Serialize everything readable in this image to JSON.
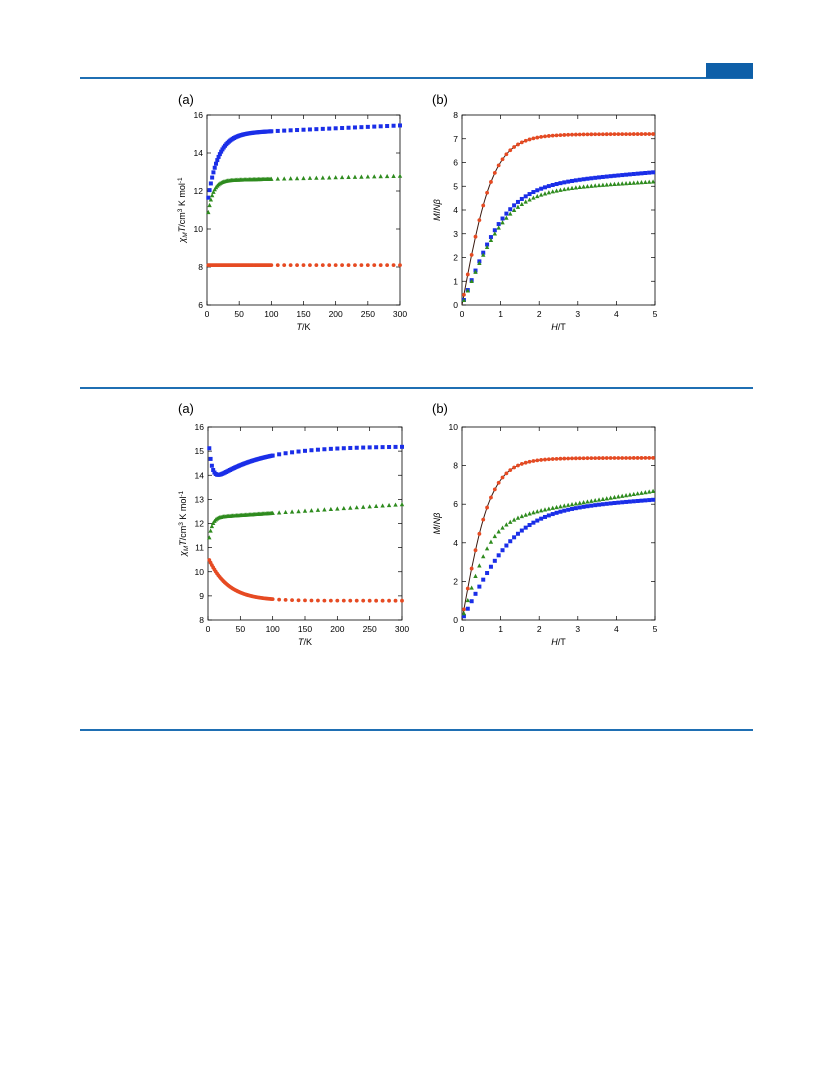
{
  "colors": {
    "rule": "#1f6fb3",
    "red": "#e64a22",
    "blue": "#1a2ee8",
    "green": "#2e8b1e",
    "fit": "#3a1a10"
  },
  "figures": [
    {
      "labels": {
        "a": "(a)",
        "b": "(b)"
      }
    },
    {
      "labels": {
        "a": "(a)",
        "b": "(b)"
      }
    }
  ],
  "chart_data": [
    {
      "type": "scatter",
      "figure": 1,
      "panel": "(a)",
      "xlabel": "T/K",
      "ylabel": "χMT/cm3 K mol-1",
      "xlim": [
        0,
        300
      ],
      "ylim": [
        6,
        16
      ],
      "xticks": [
        0,
        50,
        100,
        150,
        200,
        250,
        300
      ],
      "yticks": [
        6,
        8,
        10,
        12,
        14,
        16
      ],
      "series": [
        {
          "color": "#1a2ee8",
          "marker": "square",
          "model": "sat",
          "sat": 15.0,
          "low": 11.2,
          "tau": 16,
          "slope": 0.0015
        },
        {
          "color": "#2e8b1e",
          "marker": "triangle",
          "model": "sat",
          "sat": 12.55,
          "low": 10.4,
          "tau": 8,
          "slope": 0.0008
        },
        {
          "color": "#e64a22",
          "marker": "circle",
          "model": "flat",
          "value": 8.1
        }
      ]
    },
    {
      "type": "scatter",
      "figure": 1,
      "panel": "(b)",
      "xlabel": "H/T",
      "ylabel": "M/Nβ",
      "xlim": [
        0,
        5
      ],
      "ylim": [
        0,
        8
      ],
      "xticks": [
        0,
        1,
        2,
        3,
        4,
        5
      ],
      "yticks": [
        0,
        1,
        2,
        3,
        4,
        5,
        6,
        7,
        8
      ],
      "series": [
        {
          "color": "#e64a22",
          "marker": "circle",
          "model": "mag",
          "sat": 7.2,
          "a": 0.78,
          "slope": 0,
          "fit": true
        },
        {
          "color": "#1a2ee8",
          "marker": "square",
          "model": "mag",
          "sat": 4.95,
          "a": 0.55,
          "slope": 0.13
        },
        {
          "color": "#2e8b1e",
          "marker": "triangle",
          "model": "mag",
          "sat": 4.75,
          "a": 0.55,
          "slope": 0.09
        }
      ]
    },
    {
      "type": "scatter",
      "figure": 2,
      "panel": "(a)",
      "xlabel": "T/K",
      "ylabel": "χMT/cm3 K mol-1",
      "xlim": [
        0,
        300
      ],
      "ylim": [
        8,
        16
      ],
      "xticks": [
        0,
        50,
        100,
        150,
        200,
        250,
        300
      ],
      "yticks": [
        8,
        9,
        10,
        11,
        12,
        13,
        14,
        15,
        16
      ],
      "series": [
        {
          "color": "#1a2ee8",
          "marker": "square",
          "model": "dip",
          "base": 15.2,
          "drop": 1.6,
          "tau": 70,
          "bump": 2.2,
          "btau": 5
        },
        {
          "color": "#2e8b1e",
          "marker": "triangle",
          "model": "sat",
          "sat": 12.25,
          "low": 11.0,
          "tau": 5,
          "slope": 0.0018
        },
        {
          "color": "#e64a22",
          "marker": "circle",
          "model": "decay",
          "base": 8.8,
          "amp": 1.8,
          "tau": 30
        }
      ]
    },
    {
      "type": "scatter",
      "figure": 2,
      "panel": "(b)",
      "xlabel": "H/T",
      "ylabel": "M/Nβ",
      "xlim": [
        0,
        5
      ],
      "ylim": [
        0,
        10
      ],
      "xticks": [
        0,
        1,
        2,
        3,
        4,
        5
      ],
      "yticks": [
        0,
        2,
        4,
        6,
        8,
        10
      ],
      "series": [
        {
          "color": "#e64a22",
          "marker": "circle",
          "model": "mag",
          "sat": 8.4,
          "a": 0.85,
          "slope": 0,
          "fit": true
        },
        {
          "color": "#1a2ee8",
          "marker": "square",
          "model": "mag",
          "sat": 5.6,
          "a": 0.45,
          "slope": 0.13
        },
        {
          "color": "#2e8b1e",
          "marker": "triangle",
          "model": "mag",
          "sat": 5.2,
          "a": 0.85,
          "slope": 0.3
        }
      ]
    }
  ]
}
